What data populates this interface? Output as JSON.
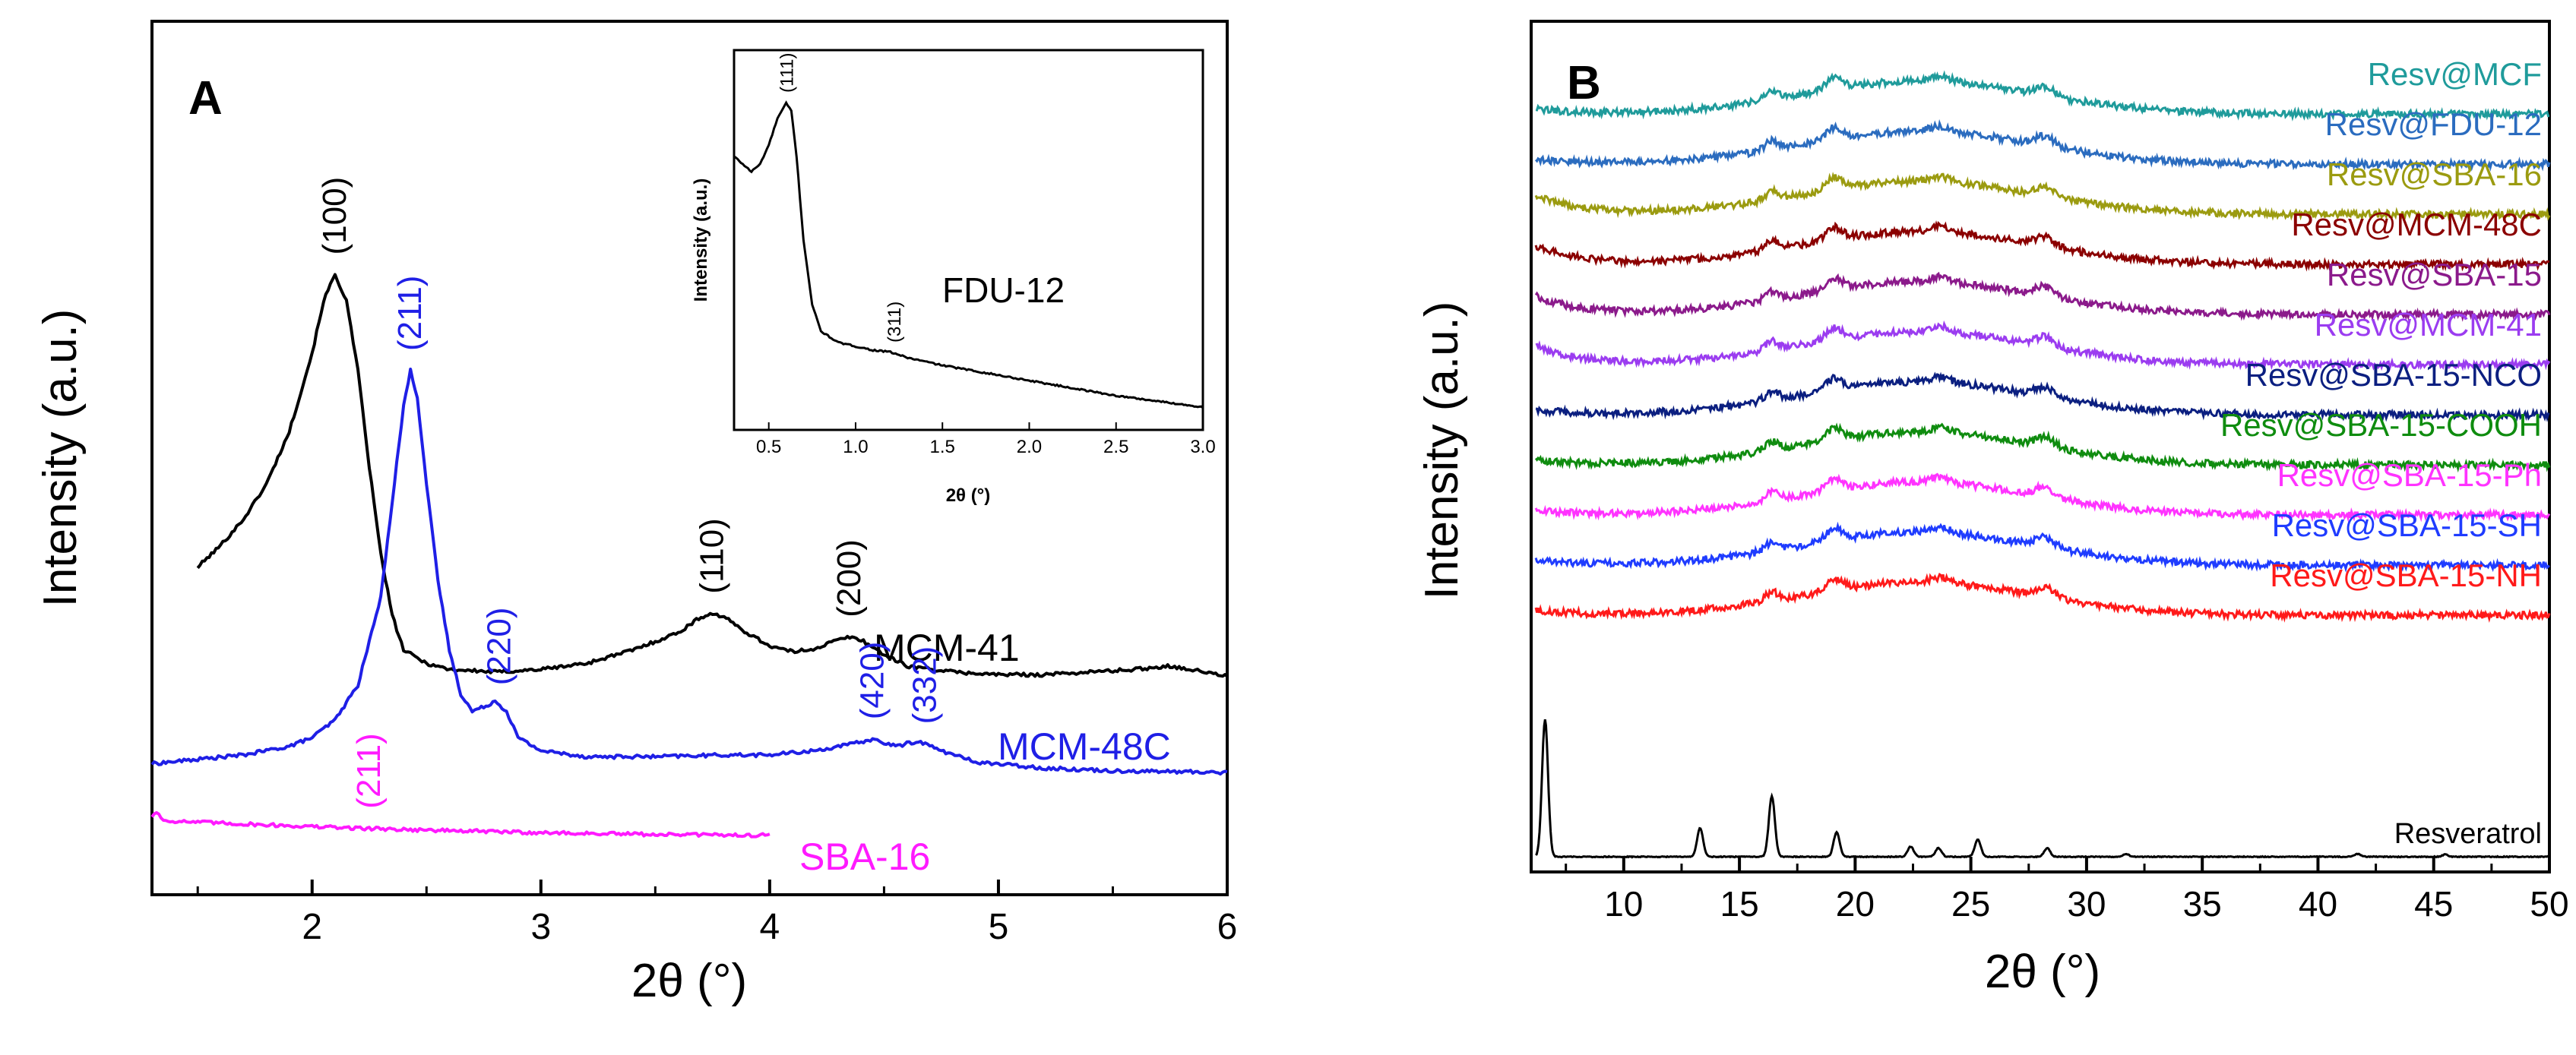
{
  "chart_data": [
    {
      "type": "line",
      "panel_label": "A",
      "xlabel": "2θ (°)",
      "ylabel": "Intensity (a.u.)",
      "xlim": [
        1.3,
        6.0
      ],
      "x_ticks": [
        "2",
        "3",
        "4",
        "5",
        "6"
      ],
      "series": [
        {
          "name": "MCM-41",
          "color": "#000000",
          "points": [
            [
              1.5,
              0.375
            ],
            [
              1.6,
              0.4
            ],
            [
              1.7,
              0.43
            ],
            [
              1.8,
              0.47
            ],
            [
              1.9,
              0.53
            ],
            [
              2.0,
              0.62
            ],
            [
              2.05,
              0.68
            ],
            [
              2.1,
              0.71
            ],
            [
              2.15,
              0.68
            ],
            [
              2.2,
              0.6
            ],
            [
              2.25,
              0.49
            ],
            [
              2.3,
              0.39
            ],
            [
              2.35,
              0.32
            ],
            [
              2.4,
              0.28
            ],
            [
              2.5,
              0.265
            ],
            [
              2.6,
              0.258
            ],
            [
              2.8,
              0.255
            ],
            [
              3.0,
              0.258
            ],
            [
              3.2,
              0.265
            ],
            [
              3.4,
              0.28
            ],
            [
              3.6,
              0.3
            ],
            [
              3.7,
              0.318
            ],
            [
              3.75,
              0.322
            ],
            [
              3.8,
              0.318
            ],
            [
              3.9,
              0.3
            ],
            [
              4.0,
              0.285
            ],
            [
              4.1,
              0.278
            ],
            [
              4.2,
              0.282
            ],
            [
              4.3,
              0.292
            ],
            [
              4.35,
              0.295
            ],
            [
              4.4,
              0.292
            ],
            [
              4.5,
              0.275
            ],
            [
              4.6,
              0.262
            ],
            [
              4.8,
              0.255
            ],
            [
              5.0,
              0.252
            ],
            [
              5.2,
              0.252
            ],
            [
              5.4,
              0.255
            ],
            [
              5.6,
              0.258
            ],
            [
              5.75,
              0.262
            ],
            [
              5.9,
              0.255
            ],
            [
              6.0,
              0.25
            ]
          ],
          "peak_labels": [
            {
              "x": 2.1,
              "label": "(100)"
            },
            {
              "x": 3.75,
              "label": "(110)"
            },
            {
              "x": 4.35,
              "label": "(200)"
            }
          ],
          "label": "MCM-41"
        },
        {
          "name": "MCM-48C",
          "color": "#1f1fe6",
          "points": [
            [
              1.3,
              0.15
            ],
            [
              1.5,
              0.155
            ],
            [
              1.7,
              0.16
            ],
            [
              1.9,
              0.17
            ],
            [
              2.0,
              0.18
            ],
            [
              2.1,
              0.2
            ],
            [
              2.2,
              0.24
            ],
            [
              2.3,
              0.34
            ],
            [
              2.35,
              0.45
            ],
            [
              2.4,
              0.56
            ],
            [
              2.43,
              0.6
            ],
            [
              2.46,
              0.57
            ],
            [
              2.5,
              0.47
            ],
            [
              2.55,
              0.36
            ],
            [
              2.6,
              0.28
            ],
            [
              2.65,
              0.23
            ],
            [
              2.7,
              0.21
            ],
            [
              2.75,
              0.215
            ],
            [
              2.8,
              0.222
            ],
            [
              2.85,
              0.21
            ],
            [
              2.9,
              0.18
            ],
            [
              3.0,
              0.165
            ],
            [
              3.2,
              0.158
            ],
            [
              3.5,
              0.158
            ],
            [
              3.8,
              0.16
            ],
            [
              4.0,
              0.16
            ],
            [
              4.2,
              0.165
            ],
            [
              4.35,
              0.172
            ],
            [
              4.45,
              0.178
            ],
            [
              4.55,
              0.17
            ],
            [
              4.65,
              0.176
            ],
            [
              4.75,
              0.165
            ],
            [
              4.9,
              0.152
            ],
            [
              5.2,
              0.145
            ],
            [
              5.5,
              0.142
            ],
            [
              6.0,
              0.14
            ]
          ],
          "peak_labels": [
            {
              "x": 2.43,
              "label": "(211)"
            },
            {
              "x": 2.82,
              "label": "(220)"
            },
            {
              "x": 4.45,
              "label": "(420)"
            },
            {
              "x": 4.68,
              "label": "(332)"
            }
          ],
          "label": "MCM-48C"
        },
        {
          "name": "SBA-16",
          "color": "#ff1aff",
          "points": [
            [
              1.3,
              0.09
            ],
            [
              1.32,
              0.095
            ],
            [
              1.35,
              0.085
            ],
            [
              1.5,
              0.083
            ],
            [
              1.8,
              0.08
            ],
            [
              2.1,
              0.077
            ],
            [
              2.5,
              0.074
            ],
            [
              3.0,
              0.071
            ],
            [
              3.5,
              0.069
            ],
            [
              4.0,
              0.068
            ]
          ],
          "peak_labels": [
            {
              "x": 2.25,
              "label": "(211)"
            }
          ],
          "label": "SBA-16"
        }
      ],
      "inset": {
        "type": "line",
        "sample": "FDU-12",
        "xlabel": "2θ (°)",
        "ylabel": "Intensity (a.u.)",
        "xlim": [
          0.3,
          3.0
        ],
        "x_ticks": [
          "0.5",
          "1.0",
          "1.5",
          "2.0",
          "2.5",
          "3.0"
        ],
        "points": [
          [
            0.3,
            0.72
          ],
          [
            0.35,
            0.7
          ],
          [
            0.4,
            0.68
          ],
          [
            0.45,
            0.7
          ],
          [
            0.5,
            0.75
          ],
          [
            0.55,
            0.82
          ],
          [
            0.6,
            0.86
          ],
          [
            0.63,
            0.84
          ],
          [
            0.66,
            0.72
          ],
          [
            0.7,
            0.5
          ],
          [
            0.75,
            0.33
          ],
          [
            0.8,
            0.26
          ],
          [
            0.9,
            0.23
          ],
          [
            1.0,
            0.22
          ],
          [
            1.1,
            0.21
          ],
          [
            1.2,
            0.205
          ],
          [
            1.3,
            0.19
          ],
          [
            1.5,
            0.17
          ],
          [
            1.75,
            0.15
          ],
          [
            2.0,
            0.13
          ],
          [
            2.25,
            0.11
          ],
          [
            2.5,
            0.09
          ],
          [
            2.75,
            0.075
          ],
          [
            3.0,
            0.06
          ]
        ],
        "peak_labels": [
          {
            "x": 0.6,
            "label": "(111)"
          },
          {
            "x": 1.22,
            "label": "(311)"
          }
        ]
      }
    },
    {
      "type": "line",
      "panel_label": "B",
      "xlabel": "2θ (°)",
      "ylabel": "Intensity (a.u.)",
      "xlim": [
        6.0,
        50.0
      ],
      "x_ticks": [
        "10",
        "15",
        "20",
        "25",
        "30",
        "35",
        "40",
        "45",
        "50"
      ],
      "resveratrol_peaks": [
        [
          6.6,
          0.95
        ],
        [
          13.3,
          0.2
        ],
        [
          16.4,
          0.42
        ],
        [
          19.2,
          0.17
        ],
        [
          22.4,
          0.07
        ],
        [
          23.6,
          0.06
        ],
        [
          25.3,
          0.12
        ],
        [
          28.3,
          0.06
        ],
        [
          31.7,
          0.02
        ],
        [
          41.7,
          0.02
        ],
        [
          45.5,
          0.015
        ]
      ],
      "series": [
        {
          "name": "Resv@MCF",
          "color": "#1f9b9b"
        },
        {
          "name": "Resv@FDU-12",
          "color": "#2b6cbf"
        },
        {
          "name": "Resv@SBA-16",
          "color": "#9b9b10"
        },
        {
          "name": "Resv@MCM-48C",
          "color": "#8b0000"
        },
        {
          "name": "Resv@SBA-15",
          "color": "#8b1a8b"
        },
        {
          "name": "Resv@MCM-41",
          "color": "#9b3cf0"
        },
        {
          "name": "Resv@SBA-15-NCO",
          "color": "#0b1f80"
        },
        {
          "name": "Resv@SBA-15-COOH",
          "color": "#0f8c0f"
        },
        {
          "name": "Resv@SBA-15-Ph",
          "color": "#ff33ff"
        },
        {
          "name": "Resv@SBA-15-SH",
          "color": "#1f3cff"
        },
        {
          "name": "Resv@SBA-15-NH",
          "color": "#ff1a1a"
        },
        {
          "name": "Resveratrol",
          "color": "#000000"
        }
      ]
    }
  ]
}
